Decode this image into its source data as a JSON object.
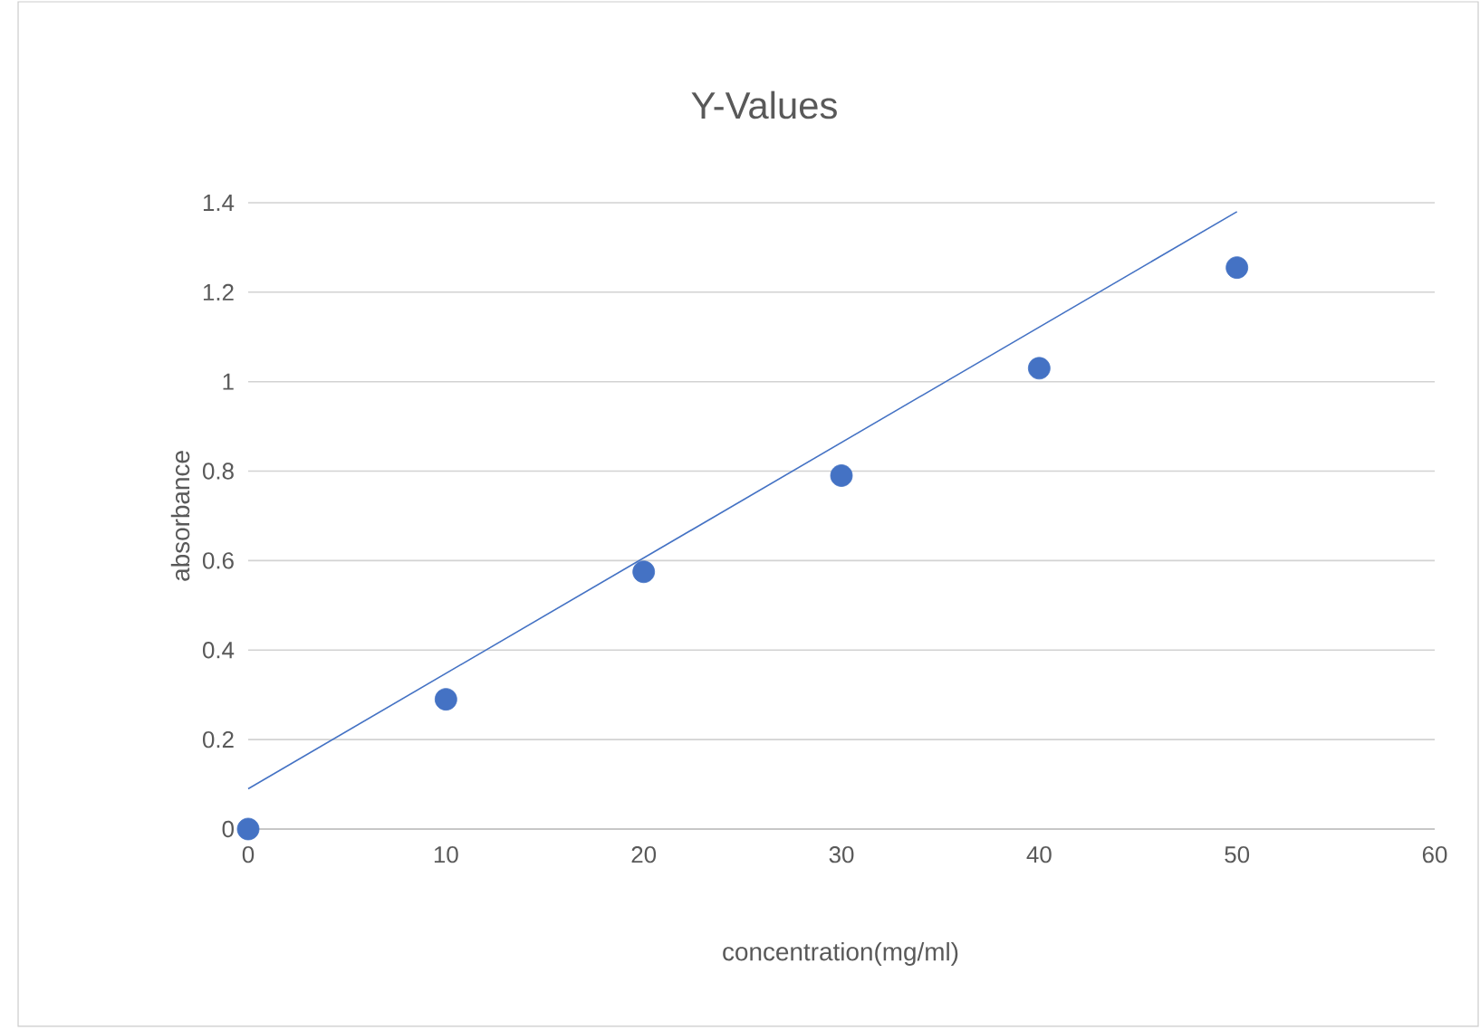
{
  "chart_data": {
    "type": "scatter",
    "title": "Y-Values",
    "xlabel": "concentration(mg/ml)",
    "ylabel": "absorbance",
    "xlim": [
      0,
      60
    ],
    "xticks": [
      0,
      10,
      20,
      30,
      40,
      50,
      60
    ],
    "ylim": [
      0,
      1.4
    ],
    "yticks": [
      0,
      0.2,
      0.4,
      0.6,
      0.8,
      1,
      1.2,
      1.4
    ],
    "grid": "y",
    "marker": "circle",
    "series": [
      {
        "color": "#4472c4",
        "x": [
          0,
          10,
          20,
          30,
          40,
          50
        ],
        "values": [
          0,
          0.29,
          0.575,
          0.79,
          1.03,
          1.255
        ]
      },
      {
        "type": "line",
        "color": "#4472c4",
        "x": [
          0,
          50
        ],
        "values": [
          0.09,
          1.38
        ],
        "marker": "none",
        "line_style": "solid"
      }
    ]
  }
}
